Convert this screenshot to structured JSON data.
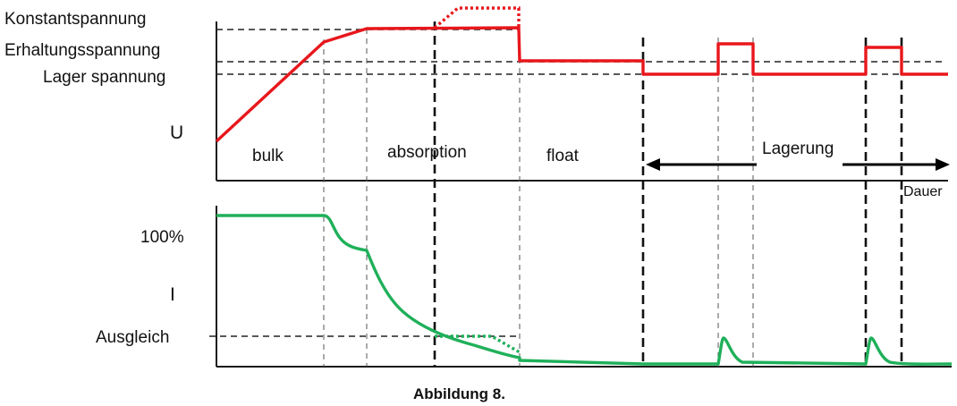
{
  "voltage_labels": {
    "constant": "Konstantspannung",
    "maintenance": "Erhaltungsspannung",
    "storage": "Lager spannung",
    "axis": "U"
  },
  "current_labels": {
    "full": "100%",
    "axis": "I",
    "equalize": "Ausgleich"
  },
  "phases": {
    "bulk": "bulk",
    "absorption": "absorption",
    "float": "float",
    "storage": "Lagerung"
  },
  "time_axis": "Dauer",
  "caption": "Abbildung 8.",
  "colors": {
    "voltage_curve": "#e8171c",
    "current_curve": "#1fb05a"
  }
}
